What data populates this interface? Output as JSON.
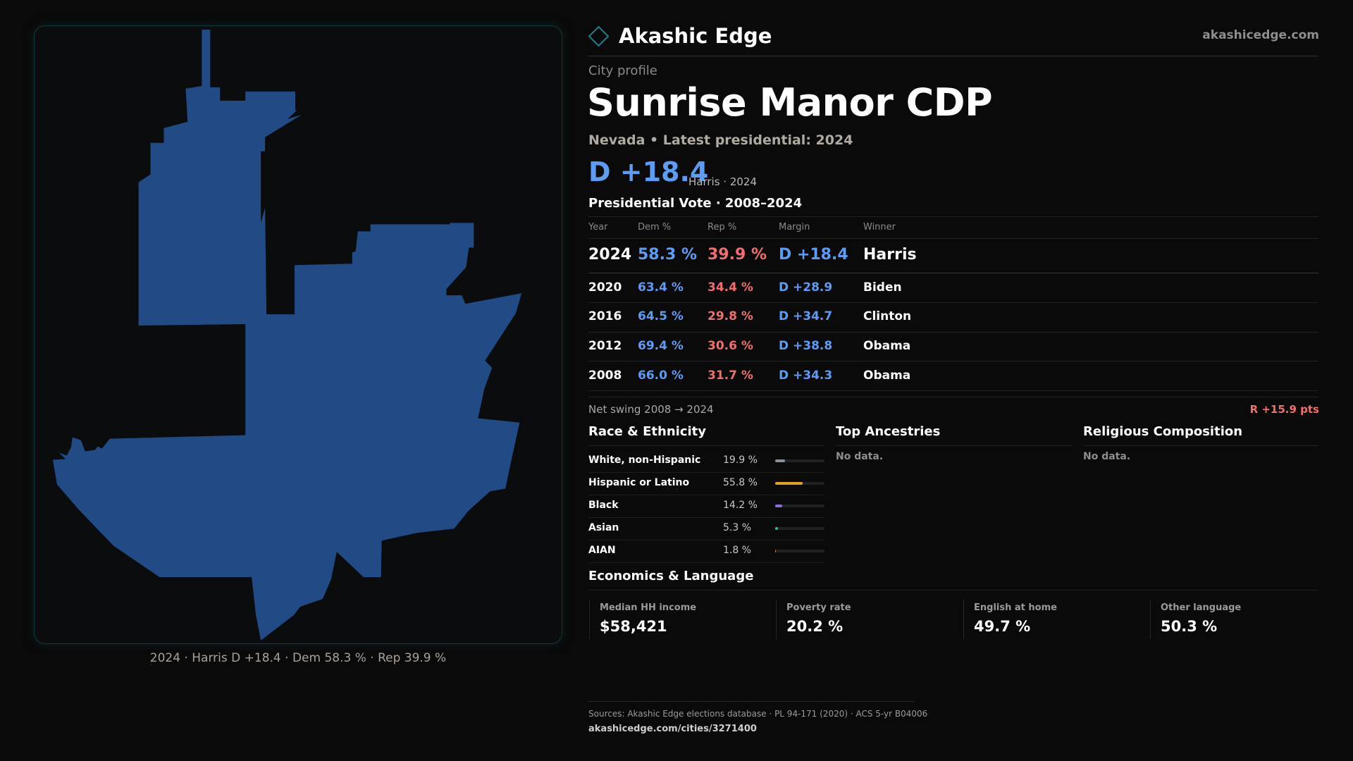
{
  "brand": {
    "name": "Akashic Edge",
    "url": "akashicedge.com"
  },
  "map": {
    "caption": "2024 · Harris D +18.4 · Dem 58.3 % · Rep 39.9 %",
    "fill_color": "#224b85"
  },
  "profile": {
    "kicker": "City profile",
    "city": "Sunrise Manor CDP",
    "subline": "Nevada • Latest presidential: 2024",
    "margin": "D +18.4",
    "margin_note": "Harris · 2024"
  },
  "vote": {
    "title": "Presidential Vote · 2008–2024",
    "headers": {
      "year": "Year",
      "dem": "Dem %",
      "rep": "Rep %",
      "margin": "Margin",
      "winner": "Winner"
    },
    "rows": [
      {
        "year": "2024",
        "dem": "58.3 %",
        "rep": "39.9 %",
        "margin": "D +18.4",
        "winner": "Harris"
      },
      {
        "year": "2020",
        "dem": "63.4 %",
        "rep": "34.4 %",
        "margin": "D +28.9",
        "winner": "Biden"
      },
      {
        "year": "2016",
        "dem": "64.5 %",
        "rep": "29.8 %",
        "margin": "D +34.7",
        "winner": "Clinton"
      },
      {
        "year": "2012",
        "dem": "69.4 %",
        "rep": "30.6 %",
        "margin": "D +38.8",
        "winner": "Obama"
      },
      {
        "year": "2008",
        "dem": "66.0 %",
        "rep": "31.7 %",
        "margin": "D +34.3",
        "winner": "Obama"
      }
    ],
    "swing_label": "Net swing 2008 → 2024",
    "swing_value": "R +15.9 pts"
  },
  "race": {
    "title": "Race & Ethnicity",
    "rows": [
      {
        "label": "White, non-Hispanic",
        "pct": "19.9 %",
        "value": 19.9,
        "color": "#8a9099"
      },
      {
        "label": "Hispanic or Latino",
        "pct": "55.8 %",
        "value": 55.8,
        "color": "#e0a020"
      },
      {
        "label": "Black",
        "pct": "14.2 %",
        "value": 14.2,
        "color": "#8a6ee0"
      },
      {
        "label": "Asian",
        "pct": "5.3 %",
        "value": 5.3,
        "color": "#2fbf8f"
      },
      {
        "label": "AIAN",
        "pct": "1.8 %",
        "value": 1.8,
        "color": "#c8702a"
      }
    ]
  },
  "ancestries": {
    "title": "Top Ancestries",
    "empty": "No data."
  },
  "religion": {
    "title": "Religious Composition",
    "empty": "No data."
  },
  "economics": {
    "title": "Economics & Language",
    "stats": [
      {
        "label": "Median HH income",
        "value": "$58,421"
      },
      {
        "label": "Poverty rate",
        "value": "20.2 %"
      },
      {
        "label": "English at home",
        "value": "49.7 %"
      },
      {
        "label": "Other language",
        "value": "50.3 %"
      }
    ]
  },
  "footer": {
    "sources": "Sources: Akashic Edge elections database · PL 94-171 (2020) · ACS 5-yr B04006",
    "url": "akashicedge.com/cities/3271400"
  }
}
